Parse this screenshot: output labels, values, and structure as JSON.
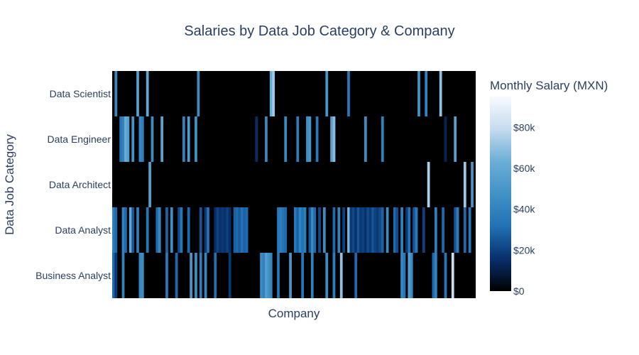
{
  "chart_data": {
    "type": "heatmap",
    "title": "Salaries by Data Job Category & Company",
    "xlabel": "Company",
    "ylabel": "Data Job Category",
    "categories": [
      "Data Scientist",
      "Data Engineer",
      "Data Architect",
      "Data Analyst",
      "Business Analyst"
    ],
    "colorscale": [
      "#000000",
      "#08306b",
      "#2171b5",
      "#4292c6",
      "#6baed6",
      "#c6dbef",
      "#f7fbff"
    ],
    "zlim": [
      0,
      95000
    ],
    "colorbar": {
      "title": "Monthly Salary (MXN)",
      "ticks": [
        {
          "value": 0,
          "label": "$0"
        },
        {
          "value": 20000,
          "label": "$20k"
        },
        {
          "value": 40000,
          "label": "$40k"
        },
        {
          "value": 60000,
          "label": "$60k"
        },
        {
          "value": 80000,
          "label": "$80k"
        }
      ]
    },
    "n_companies": 150,
    "series": [
      {
        "category": "Data Scientist",
        "values": [
          {
            "i": 1,
            "v": 42000
          },
          {
            "i": 10,
            "v": 55000
          },
          {
            "i": 14,
            "v": 60000
          },
          {
            "i": 35,
            "v": 45000
          },
          {
            "i": 65,
            "v": 62000
          },
          {
            "i": 66,
            "v": 72000
          },
          {
            "i": 88,
            "v": 50000
          },
          {
            "i": 97,
            "v": 35000
          },
          {
            "i": 126,
            "v": 48000
          },
          {
            "i": 129,
            "v": 40000
          },
          {
            "i": 135,
            "v": 70000
          }
        ]
      },
      {
        "category": "Data Engineer",
        "values": [
          {
            "i": 3,
            "v": 35000
          },
          {
            "i": 4,
            "v": 40000
          },
          {
            "i": 5,
            "v": 62000
          },
          {
            "i": 6,
            "v": 55000
          },
          {
            "i": 8,
            "v": 48000
          },
          {
            "i": 11,
            "v": 42000
          },
          {
            "i": 12,
            "v": 38000
          },
          {
            "i": 16,
            "v": 45000
          },
          {
            "i": 20,
            "v": 58000
          },
          {
            "i": 29,
            "v": 40000
          },
          {
            "i": 31,
            "v": 52000
          },
          {
            "i": 34,
            "v": 47000
          },
          {
            "i": 59,
            "v": 15000
          },
          {
            "i": 63,
            "v": 42000
          },
          {
            "i": 71,
            "v": 44000
          },
          {
            "i": 76,
            "v": 38000
          },
          {
            "i": 80,
            "v": 46000
          },
          {
            "i": 81,
            "v": 50000
          },
          {
            "i": 84,
            "v": 36000
          },
          {
            "i": 90,
            "v": 55000
          },
          {
            "i": 91,
            "v": 68000
          },
          {
            "i": 104,
            "v": 45000
          },
          {
            "i": 111,
            "v": 40000
          },
          {
            "i": 137,
            "v": 12000
          },
          {
            "i": 141,
            "v": 55000
          }
        ]
      },
      {
        "category": "Data Architect",
        "values": [
          {
            "i": 15,
            "v": 55000
          },
          {
            "i": 130,
            "v": 75000
          },
          {
            "i": 145,
            "v": 72000
          },
          {
            "i": 148,
            "v": 50000
          }
        ]
      },
      {
        "category": "Data Analyst",
        "values": [
          {
            "i": 0,
            "v": 38000
          },
          {
            "i": 1,
            "v": 30000
          },
          {
            "i": 4,
            "v": 40000
          },
          {
            "i": 5,
            "v": 30000
          },
          {
            "i": 7,
            "v": 60000
          },
          {
            "i": 8,
            "v": 25000
          },
          {
            "i": 10,
            "v": 38000
          },
          {
            "i": 14,
            "v": 35000
          },
          {
            "i": 18,
            "v": 30000
          },
          {
            "i": 19,
            "v": 42000
          },
          {
            "i": 22,
            "v": 28000
          },
          {
            "i": 24,
            "v": 45000
          },
          {
            "i": 27,
            "v": 22000
          },
          {
            "i": 28,
            "v": 35000
          },
          {
            "i": 31,
            "v": 30000
          },
          {
            "i": 36,
            "v": 25000
          },
          {
            "i": 38,
            "v": 18000
          },
          {
            "i": 39,
            "v": 32000
          },
          {
            "i": 42,
            "v": 15000
          },
          {
            "i": 43,
            "v": 20000
          },
          {
            "i": 44,
            "v": 16000
          },
          {
            "i": 45,
            "v": 18000
          },
          {
            "i": 46,
            "v": 16000
          },
          {
            "i": 47,
            "v": 20000
          },
          {
            "i": 48,
            "v": 15000
          },
          {
            "i": 50,
            "v": 28000
          },
          {
            "i": 51,
            "v": 30000
          },
          {
            "i": 52,
            "v": 26000
          },
          {
            "i": 53,
            "v": 32000
          },
          {
            "i": 54,
            "v": 28000
          },
          {
            "i": 55,
            "v": 30000
          },
          {
            "i": 68,
            "v": 35000
          },
          {
            "i": 69,
            "v": 38000
          },
          {
            "i": 70,
            "v": 33000
          },
          {
            "i": 71,
            "v": 30000
          },
          {
            "i": 75,
            "v": 35000
          },
          {
            "i": 76,
            "v": 28000
          },
          {
            "i": 77,
            "v": 40000
          },
          {
            "i": 78,
            "v": 32000
          },
          {
            "i": 79,
            "v": 38000
          },
          {
            "i": 81,
            "v": 25000
          },
          {
            "i": 82,
            "v": 42000
          },
          {
            "i": 83,
            "v": 30000
          },
          {
            "i": 85,
            "v": 22000
          },
          {
            "i": 87,
            "v": 45000
          },
          {
            "i": 91,
            "v": 30000
          },
          {
            "i": 93,
            "v": 40000
          },
          {
            "i": 95,
            "v": 20000
          },
          {
            "i": 97,
            "v": 65000
          },
          {
            "i": 98,
            "v": 18000
          },
          {
            "i": 99,
            "v": 22000
          },
          {
            "i": 100,
            "v": 16000
          },
          {
            "i": 101,
            "v": 25000
          },
          {
            "i": 102,
            "v": 18000
          },
          {
            "i": 103,
            "v": 20000
          },
          {
            "i": 104,
            "v": 16000
          },
          {
            "i": 105,
            "v": 22000
          },
          {
            "i": 106,
            "v": 18000
          },
          {
            "i": 107,
            "v": 25000
          },
          {
            "i": 108,
            "v": 20000
          },
          {
            "i": 109,
            "v": 18000
          },
          {
            "i": 110,
            "v": 22000
          },
          {
            "i": 111,
            "v": 28000
          },
          {
            "i": 113,
            "v": 45000
          },
          {
            "i": 116,
            "v": 30000
          },
          {
            "i": 117,
            "v": 22000
          },
          {
            "i": 119,
            "v": 40000
          },
          {
            "i": 121,
            "v": 18000
          },
          {
            "i": 122,
            "v": 32000
          },
          {
            "i": 124,
            "v": 25000
          },
          {
            "i": 125,
            "v": 35000
          },
          {
            "i": 128,
            "v": 20000
          },
          {
            "i": 133,
            "v": 38000
          },
          {
            "i": 136,
            "v": 30000
          },
          {
            "i": 141,
            "v": 25000
          },
          {
            "i": 142,
            "v": 38000
          },
          {
            "i": 145,
            "v": 30000
          },
          {
            "i": 147,
            "v": 35000
          }
        ]
      },
      {
        "category": "Business Analyst",
        "values": [
          {
            "i": 0,
            "v": 30000
          },
          {
            "i": 1,
            "v": 18000
          },
          {
            "i": 4,
            "v": 40000
          },
          {
            "i": 11,
            "v": 42000
          },
          {
            "i": 12,
            "v": 45000
          },
          {
            "i": 22,
            "v": 35000
          },
          {
            "i": 26,
            "v": 30000
          },
          {
            "i": 32,
            "v": 50000
          },
          {
            "i": 34,
            "v": 45000
          },
          {
            "i": 36,
            "v": 38000
          },
          {
            "i": 38,
            "v": 42000
          },
          {
            "i": 42,
            "v": 32000
          },
          {
            "i": 48,
            "v": 18000
          },
          {
            "i": 61,
            "v": 45000
          },
          {
            "i": 62,
            "v": 40000
          },
          {
            "i": 63,
            "v": 55000
          },
          {
            "i": 64,
            "v": 48000
          },
          {
            "i": 65,
            "v": 42000
          },
          {
            "i": 68,
            "v": 35000
          },
          {
            "i": 73,
            "v": 50000
          },
          {
            "i": 78,
            "v": 35000
          },
          {
            "i": 82,
            "v": 40000
          },
          {
            "i": 88,
            "v": 45000
          },
          {
            "i": 91,
            "v": 38000
          },
          {
            "i": 94,
            "v": 70000
          },
          {
            "i": 100,
            "v": 30000
          },
          {
            "i": 119,
            "v": 42000
          },
          {
            "i": 120,
            "v": 35000
          },
          {
            "i": 122,
            "v": 55000
          },
          {
            "i": 123,
            "v": 45000
          },
          {
            "i": 132,
            "v": 30000
          },
          {
            "i": 133,
            "v": 40000
          },
          {
            "i": 137,
            "v": 35000
          },
          {
            "i": 140,
            "v": 80000
          }
        ]
      }
    ]
  }
}
